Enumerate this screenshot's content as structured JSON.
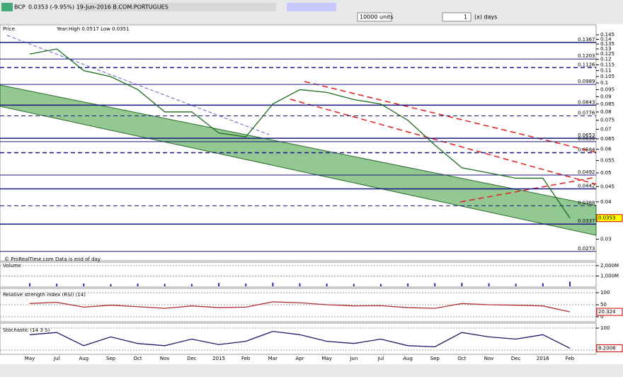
{
  "toolbar": {
    "symbol": "BCP",
    "quote": "0.0353 (-9.95%) 19-Jun-2016 B.COM.PORTUGUES",
    "units": "10000 units",
    "period_count": "1",
    "period_unit": "(x) days"
  },
  "footer_note": "© ProRealTime.com  Data is end of day",
  "chart_data": [
    {
      "type": "line",
      "title": "Price",
      "subtitle": "Year:High 0.0517 Low 0.0351",
      "log_scale": true,
      "color": "#1f6b1f",
      "categories": [
        "May",
        "Jul",
        "Aug",
        "Sep",
        "Oct",
        "Nov",
        "Dec",
        "2015",
        "Feb",
        "Mar",
        "Apr",
        "May",
        "Jun",
        "Jul",
        "Aug",
        "Sep",
        "Oct",
        "Nov",
        "Dec",
        "2016",
        "Feb"
      ],
      "values": [
        0.125,
        0.13,
        0.11,
        0.105,
        0.095,
        0.08,
        0.08,
        0.068,
        0.066,
        0.085,
        0.095,
        0.093,
        0.088,
        0.085,
        0.075,
        0.062,
        0.052,
        0.05,
        0.048,
        0.048,
        0.0353
      ],
      "ylim": [
        0.0254,
        0.154
      ],
      "yticks": [
        0.145,
        0.14,
        0.135,
        0.13,
        0.125,
        0.12,
        0.115,
        0.11,
        0.105,
        0.1,
        0.095,
        0.09,
        0.085,
        0.08,
        0.075,
        0.07,
        0.065,
        0.06,
        0.055,
        0.05,
        0.045,
        0.04,
        0.035,
        0.03
      ],
      "levels": [
        0.1367,
        0.1203,
        0.1126,
        0.0989,
        0.0843,
        0.0776,
        0.0653,
        0.0636,
        0.0584,
        0.0492,
        0.0442,
        0.0388,
        0.0337,
        0.0273
      ]
    },
    {
      "type": "bar",
      "title": "Volume",
      "color": "#2a2aa8",
      "values": [
        300000000,
        250000000,
        280000000,
        220000000,
        260000000,
        240000000,
        230000000,
        320000000,
        270000000,
        350000000,
        300000000,
        260000000,
        240000000,
        230000000,
        280000000,
        310000000,
        330000000,
        290000000,
        260000000,
        300000000,
        451000000
      ],
      "ylim": [
        0,
        2200000000
      ],
      "yticks": [
        {
          "value": 2000000000,
          "label": "2,000M"
        },
        {
          "value": 1000000000,
          "label": "1,000M"
        }
      ]
    },
    {
      "type": "line",
      "title": "Relative strength index (RSI) (14)",
      "color": "#b03030",
      "values": [
        55,
        60,
        40,
        48,
        42,
        35,
        45,
        38,
        40,
        62,
        58,
        50,
        45,
        46,
        38,
        35,
        55,
        50,
        48,
        45,
        20.324
      ],
      "ylim": [
        0,
        100
      ],
      "yticks": [
        100,
        50,
        0
      ]
    },
    {
      "type": "line",
      "title": "Stochastic (14 3 5)",
      "color": "#1a1a6a",
      "values": [
        70,
        80,
        20,
        60,
        30,
        20,
        50,
        25,
        40,
        85,
        70,
        40,
        30,
        50,
        20,
        15,
        80,
        60,
        50,
        70,
        8.2008
      ],
      "ylim": [
        0,
        100
      ],
      "yticks": [
        100,
        0
      ]
    }
  ]
}
